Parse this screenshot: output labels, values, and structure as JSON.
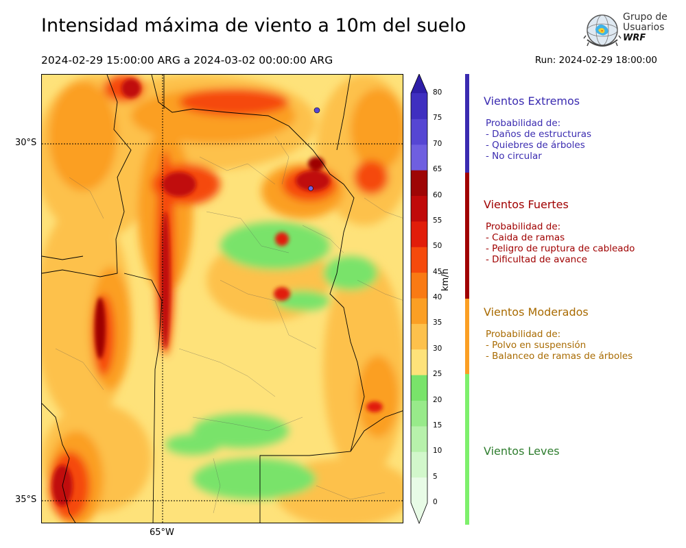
{
  "header": {
    "title": "Intensidad máxima de viento a 10m del suelo",
    "period": "2024-02-29 15:00:00 ARG  a  2024-03-02 00:00:00 ARG",
    "run": "Run: 2024-02-29 18:00:00"
  },
  "logo": {
    "line1": "Grupo de",
    "line2": "Usuarios",
    "line3": "WRF"
  },
  "map": {
    "lat_labels": [
      "30°S",
      "35°S"
    ],
    "lon_labels": [
      "65°W"
    ]
  },
  "colorbar": {
    "unit": "km/h",
    "ticks": [
      "80",
      "75",
      "70",
      "65",
      "60",
      "55",
      "50",
      "45",
      "40",
      "35",
      "30",
      "25",
      "20",
      "15",
      "10",
      "5",
      "0"
    ],
    "colors": [
      "#e8fbe6",
      "#d2f7cb",
      "#b7f1ab",
      "#98ea8a",
      "#79e36a",
      "#fee27a",
      "#fdc14c",
      "#fb9f24",
      "#f97a14",
      "#f54a0c",
      "#e11d0a",
      "#c00a0a",
      "#9e0606",
      "#6f5fe0",
      "#5646d3",
      "#3f2fc0",
      "#2e1ea8"
    ]
  },
  "legend": {
    "extremos": {
      "title": "Vientos Extremos",
      "intro": "Probabilidad de:",
      "items": [
        "- Daños de estructuras",
        "- Quiebres de árboles",
        "- No circular"
      ],
      "color": "#3a2bb0"
    },
    "fuertes": {
      "title": "Vientos Fuertes",
      "intro": "Probabilidad de:",
      "items": [
        "- Caida de ramas",
        "- Peligro de ruptura de cableado",
        "- Dificultad de avance"
      ],
      "color": "#a00000"
    },
    "moderados": {
      "title": "Vientos Moderados",
      "intro": "Probabilidad de:",
      "items": [
        "- Polvo en suspensión",
        "- Balanceo de ramas de árboles"
      ],
      "color": "#a86a00",
      "bar_color": "#fb9f24"
    },
    "leves": {
      "title": "Vientos Leves",
      "color": "#2e7d2e",
      "bar_color": "#7ef06c"
    }
  }
}
